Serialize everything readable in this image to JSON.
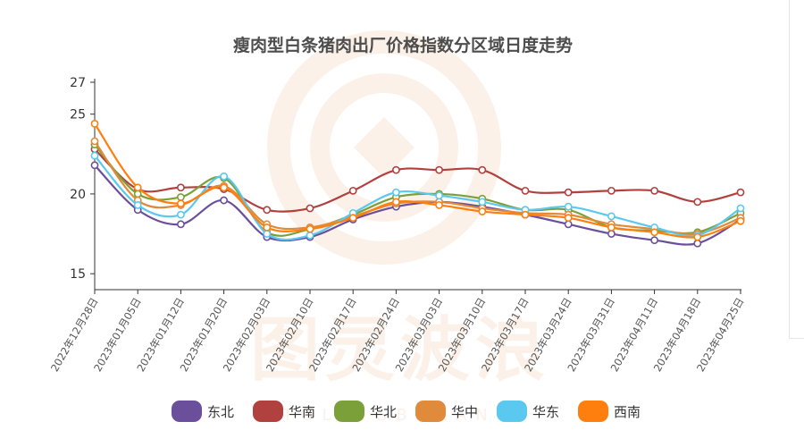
{
  "chart_data": {
    "type": "line",
    "title": "瘦肉型白条猪肉出厂价格指数分区域日度走势",
    "xlabel": "",
    "ylabel": "",
    "ylim": [
      14,
      27
    ],
    "yticks": [
      15,
      20,
      25,
      27
    ],
    "categories": [
      "2022年12月28日",
      "2023年01月05日",
      "2023年01月12日",
      "2023年01月20日",
      "2023年02月03日",
      "2023年02月10日",
      "2023年02月17日",
      "2023年02月24日",
      "2023年03月03日",
      "2023年03月10日",
      "2023年03月17日",
      "2023年03月24日",
      "2023年03月31日",
      "2023年04月11日",
      "2023年04月18日",
      "2023年04月25日"
    ],
    "series": [
      {
        "name": "东北",
        "color": "#6b4f9a",
        "values": [
          21.8,
          19.0,
          18.1,
          19.6,
          17.3,
          17.3,
          18.4,
          19.2,
          19.5,
          19.2,
          18.7,
          18.1,
          17.5,
          17.1,
          16.9,
          18.4
        ]
      },
      {
        "name": "华南",
        "color": "#b0413e",
        "values": [
          22.8,
          20.3,
          20.4,
          20.3,
          19.0,
          19.1,
          20.2,
          21.5,
          21.5,
          21.5,
          20.2,
          20.1,
          20.2,
          20.2,
          19.5,
          20.1
        ]
      },
      {
        "name": "华北",
        "color": "#7ba03a",
        "values": [
          23.1,
          20.0,
          19.8,
          21.0,
          17.6,
          17.8,
          18.7,
          19.8,
          20.0,
          19.7,
          19.0,
          19.0,
          17.9,
          17.7,
          17.6,
          18.8
        ]
      },
      {
        "name": "华中",
        "color": "#e08a3c",
        "values": [
          23.3,
          19.6,
          19.3,
          20.5,
          18.1,
          17.9,
          18.6,
          19.4,
          19.5,
          19.1,
          18.8,
          18.7,
          18.1,
          17.8,
          17.5,
          18.5
        ]
      },
      {
        "name": "华东",
        "color": "#5bc8ef",
        "values": [
          22.4,
          19.3,
          18.7,
          21.1,
          17.5,
          17.4,
          18.8,
          20.1,
          19.9,
          19.5,
          19.0,
          19.2,
          18.6,
          17.9,
          17.4,
          19.1
        ]
      },
      {
        "name": "西南",
        "color": "#ff7f0e",
        "values": [
          24.4,
          20.4,
          19.4,
          20.4,
          17.9,
          17.8,
          18.5,
          19.5,
          19.3,
          18.9,
          18.7,
          18.5,
          17.9,
          17.6,
          17.3,
          18.3
        ]
      }
    ],
    "grid": false,
    "legend_position": "bottom"
  },
  "watermark": {
    "text": "图灵波浪",
    "subtext": "TULINGBOLANG",
    "color": "#e39a57"
  }
}
